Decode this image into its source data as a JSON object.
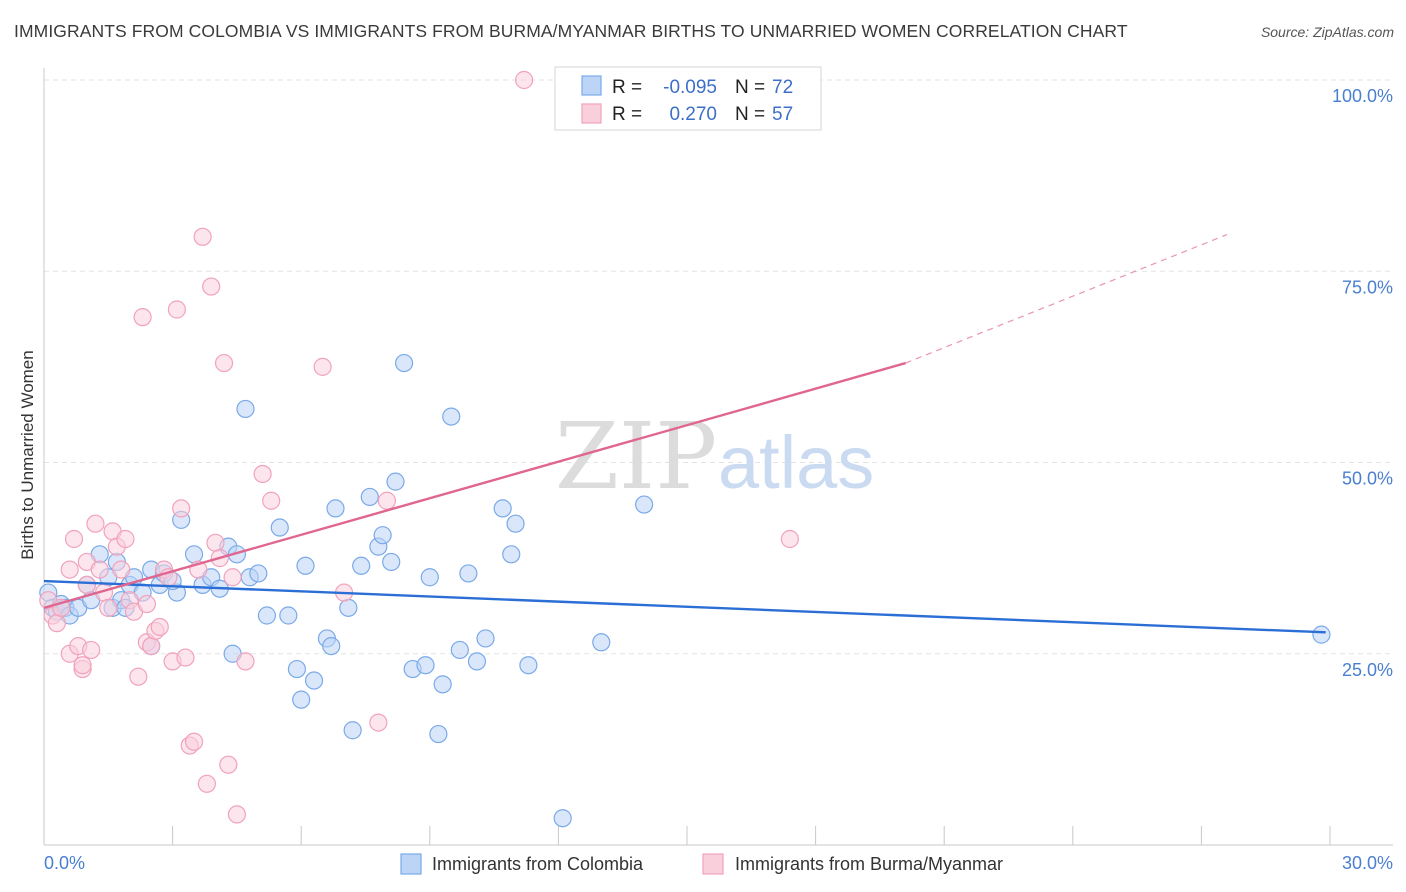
{
  "title": "IMMIGRANTS FROM COLOMBIA VS IMMIGRANTS FROM BURMA/MYANMAR BIRTHS TO UNMARRIED WOMEN CORRELATION CHART",
  "source": "Source: ZipAtlas.com",
  "watermark": {
    "zip": "ZIP",
    "atlas": "atlas"
  },
  "chart_data": {
    "type": "scatter",
    "xlabel": "",
    "ylabel": "Births to Unmarried Women",
    "xlim": [
      0,
      30
    ],
    "ylim": [
      0,
      100
    ],
    "x_tick_labels": {
      "left": "0.0%",
      "right": "30.0%"
    },
    "y_ticks": [
      25,
      50,
      75,
      100
    ],
    "y_tick_labels": [
      "25.0%",
      "50.0%",
      "75.0%",
      "100.0%"
    ],
    "grid": true,
    "legend_position": "top-center",
    "stats": [
      {
        "r_label": "R =",
        "r": "-0.095",
        "n_label": "N =",
        "n": "72"
      },
      {
        "r_label": "R =",
        "r": "0.270",
        "n_label": "N =",
        "n": "57"
      }
    ],
    "series": [
      {
        "name": "Immigrants from Colombia",
        "color": "#7aaae8",
        "fill": "#bcd4f5",
        "trend": {
          "x": [
            0,
            29.9
          ],
          "y": [
            34.5,
            27.8
          ],
          "color": "#2b6fd6"
        },
        "points": [
          [
            0.1,
            33
          ],
          [
            0.2,
            31
          ],
          [
            0.3,
            30.5
          ],
          [
            0.4,
            31.5
          ],
          [
            0.5,
            31
          ],
          [
            0.6,
            30
          ],
          [
            0.8,
            31
          ],
          [
            1.0,
            34
          ],
          [
            1.1,
            32
          ],
          [
            1.3,
            38
          ],
          [
            1.5,
            35
          ],
          [
            1.6,
            31
          ],
          [
            1.7,
            37
          ],
          [
            1.8,
            32
          ],
          [
            2.0,
            34
          ],
          [
            2.1,
            35
          ],
          [
            2.3,
            33
          ],
          [
            2.5,
            36
          ],
          [
            2.7,
            34
          ],
          [
            2.8,
            35.5
          ],
          [
            3.1,
            33
          ],
          [
            3.2,
            42.5
          ],
          [
            3.5,
            38
          ],
          [
            3.7,
            34
          ],
          [
            3.9,
            35
          ],
          [
            4.1,
            33.5
          ],
          [
            4.3,
            39
          ],
          [
            4.5,
            38
          ],
          [
            4.8,
            35
          ],
          [
            5.0,
            35.5
          ],
          [
            5.2,
            30
          ],
          [
            5.5,
            41.5
          ],
          [
            5.7,
            30
          ],
          [
            5.9,
            23
          ],
          [
            6.0,
            19
          ],
          [
            6.1,
            36.5
          ],
          [
            6.3,
            21.5
          ],
          [
            6.6,
            27
          ],
          [
            6.7,
            26
          ],
          [
            6.8,
            44
          ],
          [
            7.1,
            31
          ],
          [
            7.4,
            36.5
          ],
          [
            7.6,
            45.5
          ],
          [
            7.8,
            39
          ],
          [
            7.9,
            40.5
          ],
          [
            8.1,
            37
          ],
          [
            8.2,
            47.5
          ],
          [
            8.4,
            63
          ],
          [
            8.6,
            23
          ],
          [
            8.9,
            23.5
          ],
          [
            9.0,
            35
          ],
          [
            9.3,
            21
          ],
          [
            9.5,
            56
          ],
          [
            9.7,
            25.5
          ],
          [
            9.9,
            35.5
          ],
          [
            10.1,
            24
          ],
          [
            10.3,
            27
          ],
          [
            10.7,
            44
          ],
          [
            11.0,
            42
          ],
          [
            10.9,
            38
          ],
          [
            11.3,
            23.5
          ],
          [
            4.7,
            57
          ],
          [
            7.2,
            15
          ],
          [
            9.2,
            14.5
          ],
          [
            12.1,
            3.5
          ],
          [
            13.0,
            26.5
          ],
          [
            14.0,
            44.5
          ],
          [
            29.8,
            27.5
          ],
          [
            2.5,
            26
          ],
          [
            4.4,
            25
          ],
          [
            1.9,
            31
          ],
          [
            3.0,
            34.5
          ]
        ]
      },
      {
        "name": "Immigrants from Burma/Myanmar",
        "color": "#f1a2bc",
        "fill": "#f9cfdc",
        "trend": {
          "x": [
            0,
            20.1
          ],
          "y": [
            31,
            63
          ],
          "color": "#e06690",
          "dash_to": [
            27.6,
            79.8
          ]
        },
        "points": [
          [
            0.1,
            32
          ],
          [
            0.2,
            30
          ],
          [
            0.3,
            29
          ],
          [
            0.4,
            31
          ],
          [
            0.6,
            25
          ],
          [
            0.6,
            36
          ],
          [
            0.7,
            40
          ],
          [
            0.8,
            26
          ],
          [
            0.9,
            23
          ],
          [
            1.0,
            34
          ],
          [
            1.0,
            37
          ],
          [
            1.1,
            25.5
          ],
          [
            1.2,
            42
          ],
          [
            1.3,
            36
          ],
          [
            1.4,
            33
          ],
          [
            1.5,
            31
          ],
          [
            1.6,
            41
          ],
          [
            1.7,
            39
          ],
          [
            1.8,
            36
          ],
          [
            1.9,
            40
          ],
          [
            2.0,
            32
          ],
          [
            2.1,
            30.5
          ],
          [
            2.2,
            22
          ],
          [
            2.3,
            69
          ],
          [
            2.4,
            26.5
          ],
          [
            2.5,
            26
          ],
          [
            2.6,
            28
          ],
          [
            2.7,
            28.5
          ],
          [
            2.8,
            36
          ],
          [
            2.9,
            35
          ],
          [
            3.0,
            24
          ],
          [
            3.1,
            70
          ],
          [
            3.2,
            44
          ],
          [
            3.3,
            24.5
          ],
          [
            3.4,
            13
          ],
          [
            3.5,
            13.5
          ],
          [
            3.6,
            36
          ],
          [
            3.7,
            79.5
          ],
          [
            3.8,
            8
          ],
          [
            3.9,
            73
          ],
          [
            4.0,
            39.5
          ],
          [
            4.1,
            37.5
          ],
          [
            4.2,
            63
          ],
          [
            4.3,
            10.5
          ],
          [
            4.4,
            35
          ],
          [
            4.5,
            4
          ],
          [
            4.7,
            24
          ],
          [
            5.1,
            48.5
          ],
          [
            5.3,
            45
          ],
          [
            6.5,
            62.5
          ],
          [
            7.0,
            33
          ],
          [
            7.8,
            16
          ],
          [
            8.0,
            45
          ],
          [
            11.2,
            100
          ],
          [
            17.4,
            40
          ],
          [
            0.9,
            23.5
          ],
          [
            2.4,
            31.5
          ]
        ]
      }
    ]
  }
}
